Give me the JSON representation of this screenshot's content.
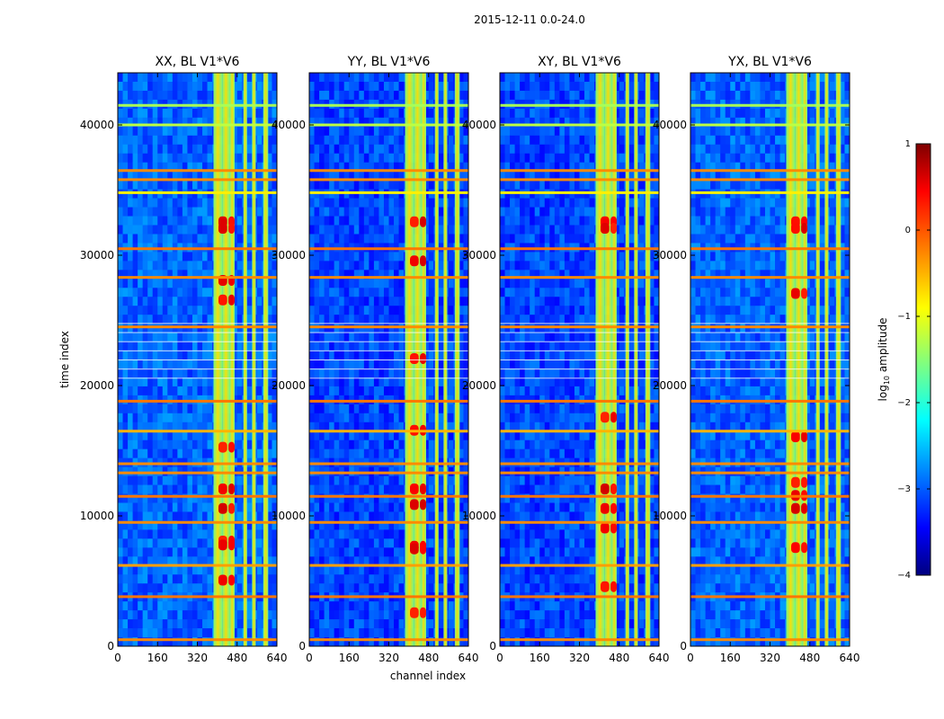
{
  "chart_data": {
    "type": "heatmap",
    "suptitle": "2015-12-11 0.0-24.0",
    "xlabel": "channel index",
    "ylabel": "time index",
    "xlim": [
      0,
      640
    ],
    "ylim": [
      0,
      44000
    ],
    "xticks": [
      0,
      160,
      320,
      480,
      640
    ],
    "yticks": [
      0,
      10000,
      20000,
      30000,
      40000
    ],
    "panels": [
      {
        "title": "XX, BL V1*V6",
        "strong_rows": [
          32500,
          32000,
          28000,
          26500,
          15200,
          12000,
          10500,
          8000,
          7700,
          5000
        ]
      },
      {
        "title": "YY, BL V1*V6",
        "strong_rows": [
          32500,
          29500,
          22000,
          16500,
          12000,
          10800,
          7600,
          7400,
          2500
        ]
      },
      {
        "title": "XY, BL V1*V6",
        "strong_rows": [
          32500,
          32000,
          17500,
          12000,
          10500,
          9000,
          4500
        ]
      },
      {
        "title": "YX, BL V1*V6",
        "strong_rows": [
          32500,
          32000,
          27000,
          16000,
          12500,
          11500,
          10500,
          7500
        ]
      }
    ],
    "rfi_bands": [
      [
        385,
        420
      ],
      [
        420,
        450
      ],
      [
        450,
        470
      ],
      [
        505,
        520
      ],
      [
        540,
        555
      ],
      [
        585,
        605
      ]
    ],
    "horizontal_lines": [
      {
        "t": 500,
        "level": -0.3
      },
      {
        "t": 6200,
        "level": -0.4
      },
      {
        "t": 16500,
        "level": -0.5
      },
      {
        "t": 28300,
        "level": -0.3
      },
      {
        "t": 34800,
        "level": -0.8
      },
      {
        "t": 35800,
        "level": -0.3
      },
      {
        "t": 36500,
        "level": -0.3
      },
      {
        "t": 3800,
        "level": -0.2
      },
      {
        "t": 9500,
        "level": -0.3
      },
      {
        "t": 11500,
        "level": -0.2
      },
      {
        "t": 13300,
        "level": -0.3
      },
      {
        "t": 14000,
        "level": -0.3
      },
      {
        "t": 18800,
        "level": -0.2
      },
      {
        "t": 24500,
        "level": -0.3
      },
      {
        "t": 30500,
        "level": -0.2
      },
      {
        "t": 40000,
        "level": -1.2
      },
      {
        "t": 41500,
        "level": -1.3
      }
    ],
    "colorbar": {
      "label": "log10 amplitude",
      "label_prefix": "log",
      "label_sub": "10",
      "label_suffix": " amplitude",
      "range": [
        -4,
        1
      ],
      "ticks": [
        "1",
        "0",
        "−1",
        "−2",
        "−3",
        "−4"
      ],
      "tick_values": [
        1,
        0,
        -1,
        -2,
        -3,
        -4
      ]
    }
  }
}
